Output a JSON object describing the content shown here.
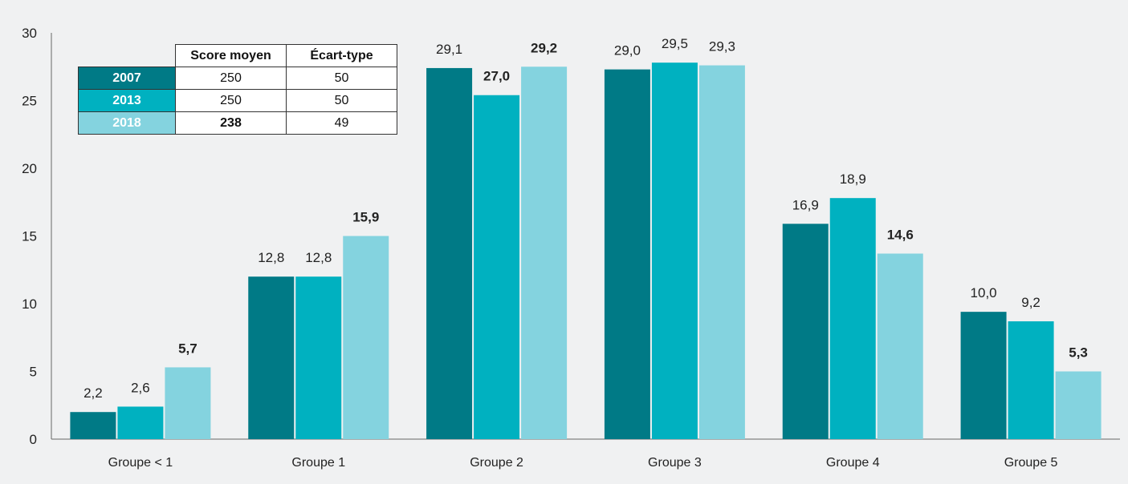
{
  "chart_data": {
    "type": "bar",
    "categories": [
      "Groupe < 1",
      "Groupe 1",
      "Groupe 2",
      "Groupe 3",
      "Groupe 4",
      "Groupe 5"
    ],
    "series": [
      {
        "name": "2007",
        "color": "#007a86",
        "values": [
          2.0,
          12.0,
          27.4,
          27.3,
          15.9,
          9.4
        ],
        "labels": [
          "2,2",
          "12,8",
          "29,1",
          "29,0",
          "16,9",
          "10,0"
        ],
        "bold": [
          false,
          false,
          false,
          false,
          false,
          false
        ]
      },
      {
        "name": "2013",
        "color": "#00b1c0",
        "values": [
          2.4,
          12.0,
          25.4,
          27.8,
          17.8,
          8.7
        ],
        "labels": [
          "2,6",
          "12,8",
          "27,0",
          "29,5",
          "18,9",
          "9,2"
        ],
        "bold": [
          false,
          false,
          true,
          false,
          false,
          false
        ]
      },
      {
        "name": "2018",
        "color": "#84d3df",
        "values": [
          5.3,
          15.0,
          27.5,
          27.6,
          13.7,
          5.0
        ],
        "labels": [
          "5,7",
          "15,9",
          "29,2",
          "29,3",
          "14,6",
          "5,3"
        ],
        "bold": [
          true,
          true,
          true,
          false,
          true,
          true
        ]
      }
    ],
    "yticks": [
      "0",
      "5",
      "10",
      "15",
      "20",
      "25",
      "30"
    ],
    "ylim": [
      0,
      30
    ],
    "grid": false,
    "title": "",
    "xlabel": "",
    "ylabel": ""
  },
  "inset_table": {
    "headers": [
      "Score moyen",
      "Écart-type"
    ],
    "rows": [
      {
        "year": "2007",
        "color": "#007a86",
        "score": "250",
        "sd": "50",
        "bold": false
      },
      {
        "year": "2013",
        "color": "#00b1c0",
        "score": "250",
        "sd": "50",
        "bold": false
      },
      {
        "year": "2018",
        "color": "#84d3df",
        "score": "238",
        "sd": "49",
        "bold": true
      }
    ]
  }
}
